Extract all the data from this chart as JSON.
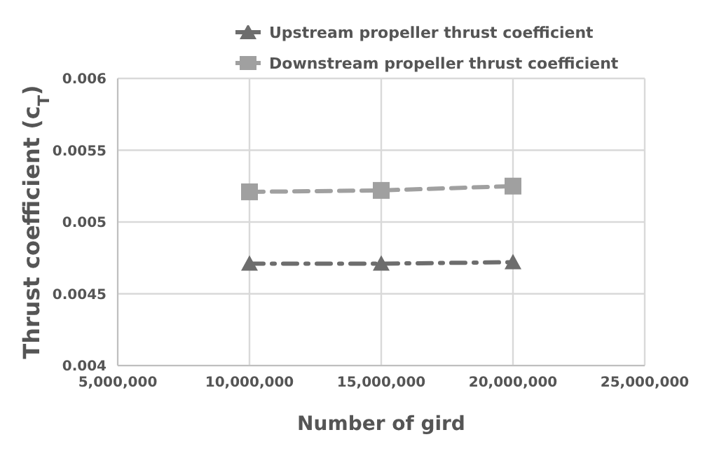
{
  "chart_data": {
    "type": "line",
    "xlabel": "Number of gird",
    "ylabel": "Thrust coefficient (c$_{T}$)",
    "x": [
      10000000,
      15000000,
      20000000
    ],
    "series": [
      {
        "name": "Upstream propeller thrust coefficient",
        "color": "#6d6d6d",
        "values": [
          0.00471,
          0.00471,
          0.00472
        ],
        "marker": "triangle",
        "line_style": "dashdot"
      },
      {
        "name": "Downstream propeller thrust coefficient",
        "color": "#a0a0a0",
        "values": [
          0.00521,
          0.00522,
          0.00525
        ],
        "marker": "square",
        "line_style": "dashed"
      }
    ],
    "xlim": [
      5000000,
      25000000
    ],
    "xticks": [
      {
        "value": 5000000,
        "label": "5,000,000"
      },
      {
        "value": 10000000,
        "label": "10,000,000"
      },
      {
        "value": 15000000,
        "label": "15,000,000"
      },
      {
        "value": 20000000,
        "label": "20,000,000"
      },
      {
        "value": 25000000,
        "label": "25,000,000"
      }
    ],
    "ylim": [
      0.004,
      0.006
    ],
    "yticks": [
      0.004,
      0.0045,
      0.005,
      0.0055,
      0.006
    ],
    "grid": true,
    "legend": "top"
  }
}
